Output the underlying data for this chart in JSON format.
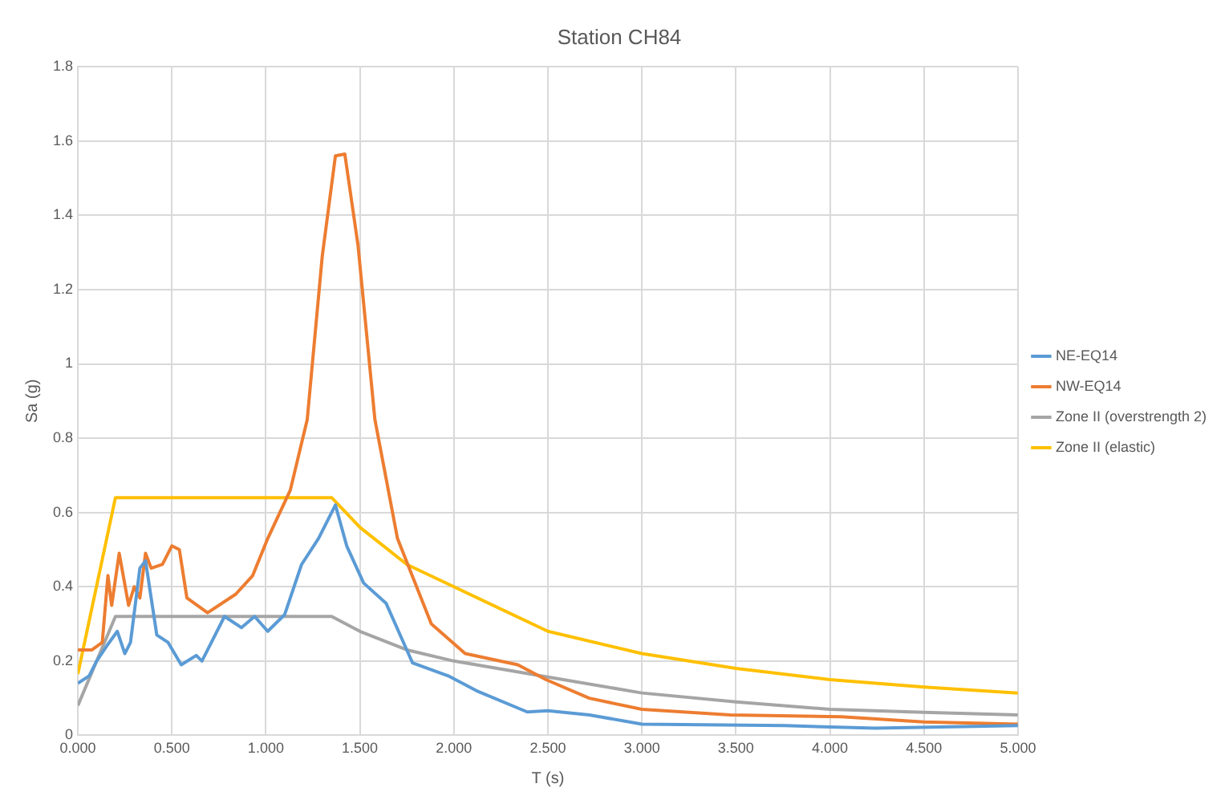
{
  "chart_data": {
    "type": "line",
    "title": "Station CH84",
    "xlabel": "T (s)",
    "ylabel": "Sa (g)",
    "xlim": [
      0,
      5
    ],
    "xticks": [
      {
        "value": 0,
        "label": "0.000"
      },
      {
        "value": 0.5,
        "label": "0.500"
      },
      {
        "value": 1,
        "label": "1.000"
      },
      {
        "value": 1.5,
        "label": "1.500"
      },
      {
        "value": 2,
        "label": "2.000"
      },
      {
        "value": 2.5,
        "label": "2.500"
      },
      {
        "value": 3,
        "label": "3.000"
      },
      {
        "value": 3.5,
        "label": "3.500"
      },
      {
        "value": 4,
        "label": "4.000"
      },
      {
        "value": 4.5,
        "label": "4.500"
      },
      {
        "value": 5,
        "label": "5.000"
      }
    ],
    "ylim": [
      0,
      1.8
    ],
    "yticks": [
      0,
      0.2,
      0.4,
      0.6,
      0.8,
      1,
      1.2,
      1.4,
      1.6,
      1.8
    ],
    "grid": true,
    "legend": "right",
    "marker": "none",
    "line_style": "solid",
    "series": [
      {
        "name": "NE-EQ14",
        "color": "#5b9bd5",
        "x": [
          0,
          0.06,
          0.1,
          0.16,
          0.21,
          0.25,
          0.28,
          0.33,
          0.36,
          0.42,
          0.48,
          0.55,
          0.63,
          0.66,
          0.78,
          0.87,
          0.94,
          1.01,
          1.1,
          1.19,
          1.28,
          1.37,
          1.43,
          1.52,
          1.64,
          1.78,
          1.97,
          2.12,
          2.39,
          2.5,
          2.72,
          3,
          3.76,
          4.24,
          5
        ],
        "values": [
          0.14,
          0.16,
          0.2,
          0.245,
          0.28,
          0.22,
          0.25,
          0.45,
          0.47,
          0.27,
          0.25,
          0.19,
          0.215,
          0.2,
          0.32,
          0.29,
          0.32,
          0.28,
          0.325,
          0.46,
          0.53,
          0.62,
          0.51,
          0.41,
          0.355,
          0.195,
          0.16,
          0.12,
          0.063,
          0.066,
          0.055,
          0.03,
          0.026,
          0.019,
          0.026
        ]
      },
      {
        "name": "NW-EQ14",
        "color": "#ed7d31",
        "x": [
          0,
          0.075,
          0.13,
          0.16,
          0.18,
          0.22,
          0.27,
          0.3,
          0.33,
          0.36,
          0.39,
          0.45,
          0.5,
          0.54,
          0.58,
          0.69,
          0.84,
          0.93,
          1.01,
          1.13,
          1.22,
          1.3,
          1.37,
          1.42,
          1.49,
          1.58,
          1.7,
          1.88,
          2.06,
          2.34,
          2.49,
          2.72,
          3,
          3.47,
          4.06,
          4.5,
          5
        ],
        "values": [
          0.23,
          0.23,
          0.25,
          0.43,
          0.35,
          0.49,
          0.35,
          0.4,
          0.37,
          0.49,
          0.45,
          0.46,
          0.51,
          0.5,
          0.37,
          0.33,
          0.38,
          0.43,
          0.53,
          0.66,
          0.85,
          1.29,
          1.56,
          1.565,
          1.32,
          0.85,
          0.53,
          0.3,
          0.22,
          0.19,
          0.15,
          0.1,
          0.07,
          0.055,
          0.05,
          0.036,
          0.03
        ]
      },
      {
        "name": "Zone II (overstrength 2)",
        "color": "#a5a5a5",
        "x": [
          0,
          0.2,
          1.35,
          1.5,
          1.75,
          2,
          2.5,
          3,
          3.5,
          4,
          4.5,
          5
        ],
        "values": [
          0.08,
          0.32,
          0.32,
          0.28,
          0.23,
          0.2,
          0.157,
          0.114,
          0.09,
          0.07,
          0.062,
          0.055
        ]
      },
      {
        "name": "Zone II (elastic)",
        "color": "#ffc000",
        "x": [
          0,
          0.2,
          1.35,
          1.5,
          1.75,
          2,
          2.5,
          3,
          3.5,
          4,
          4.5,
          5
        ],
        "values": [
          0.165,
          0.64,
          0.64,
          0.56,
          0.46,
          0.4,
          0.28,
          0.22,
          0.18,
          0.15,
          0.13,
          0.114
        ]
      }
    ]
  }
}
